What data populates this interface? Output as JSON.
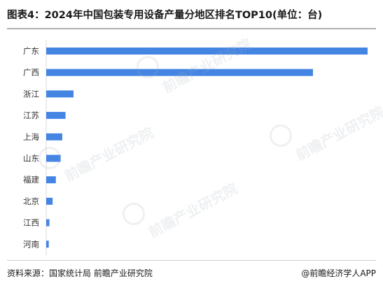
{
  "header": {
    "title": "图表4：2024年中国包装专用设备产量分地区排名TOP10(单位：台)"
  },
  "footer": {
    "source": "资料来源：国家统计局 前瞻产业研究院",
    "credit": "@前瞻经济学人APP"
  },
  "watermark": {
    "text": "前瞻产业研究院"
  },
  "colors": {
    "bar": "#4485e4",
    "title_rule": "#b0b0b0"
  },
  "chart_data": {
    "type": "bar",
    "orientation": "horizontal",
    "title": "图表4：2024年中国包装专用设备产量分地区排名TOP10(单位：台)",
    "xlabel": "",
    "ylabel": "",
    "unit": "台",
    "value_axis_shown": false,
    "grid": false,
    "legend": "none",
    "categories": [
      "广东",
      "广西",
      "浙江",
      "江苏",
      "上海",
      "山东",
      "福建",
      "北京",
      "江西",
      "河南"
    ],
    "values": [
      100,
      83,
      8.5,
      6,
      5,
      4.5,
      3,
      2,
      1,
      0.8
    ],
    "xlim": [
      0,
      100
    ],
    "note": "Values are relative estimates read from bar lengths; no value axis or data labels are printed."
  }
}
